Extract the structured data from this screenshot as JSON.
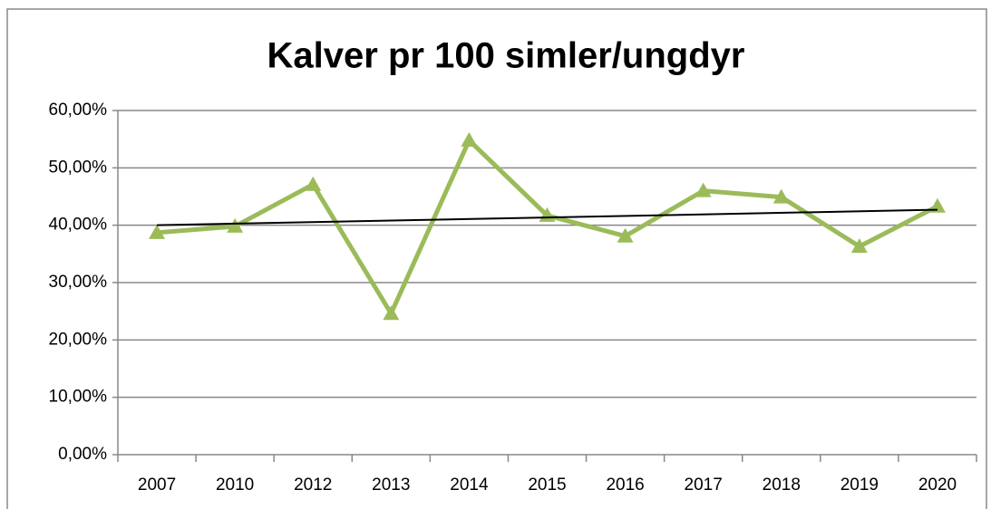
{
  "chart_data": {
    "type": "line",
    "title": "Kalver pr 100 simler/ungdyr",
    "categories": [
      "2007",
      "2010",
      "2012",
      "2013",
      "2014",
      "2015",
      "2016",
      "2017",
      "2018",
      "2019",
      "2020"
    ],
    "series": [
      {
        "color": "#9bbb59",
        "values": [
          38.7,
          39.8,
          47.1,
          24.6,
          54.8,
          41.7,
          38.1,
          46.0,
          44.9,
          36.3,
          43.3
        ]
      }
    ],
    "trendline": {
      "color": "#000000",
      "values": [
        40.0,
        42.7
      ]
    },
    "ylim": [
      0,
      60
    ],
    "yticks": [
      {
        "value": 0,
        "label": "0,00%"
      },
      {
        "value": 10,
        "label": "10,00%"
      },
      {
        "value": 20,
        "label": "20,00%"
      },
      {
        "value": 30,
        "label": "30,00%"
      },
      {
        "value": 40,
        "label": "40,00%"
      },
      {
        "value": 50,
        "label": "50,00%"
      },
      {
        "value": 60,
        "label": "60,00%"
      }
    ],
    "grid": true
  }
}
